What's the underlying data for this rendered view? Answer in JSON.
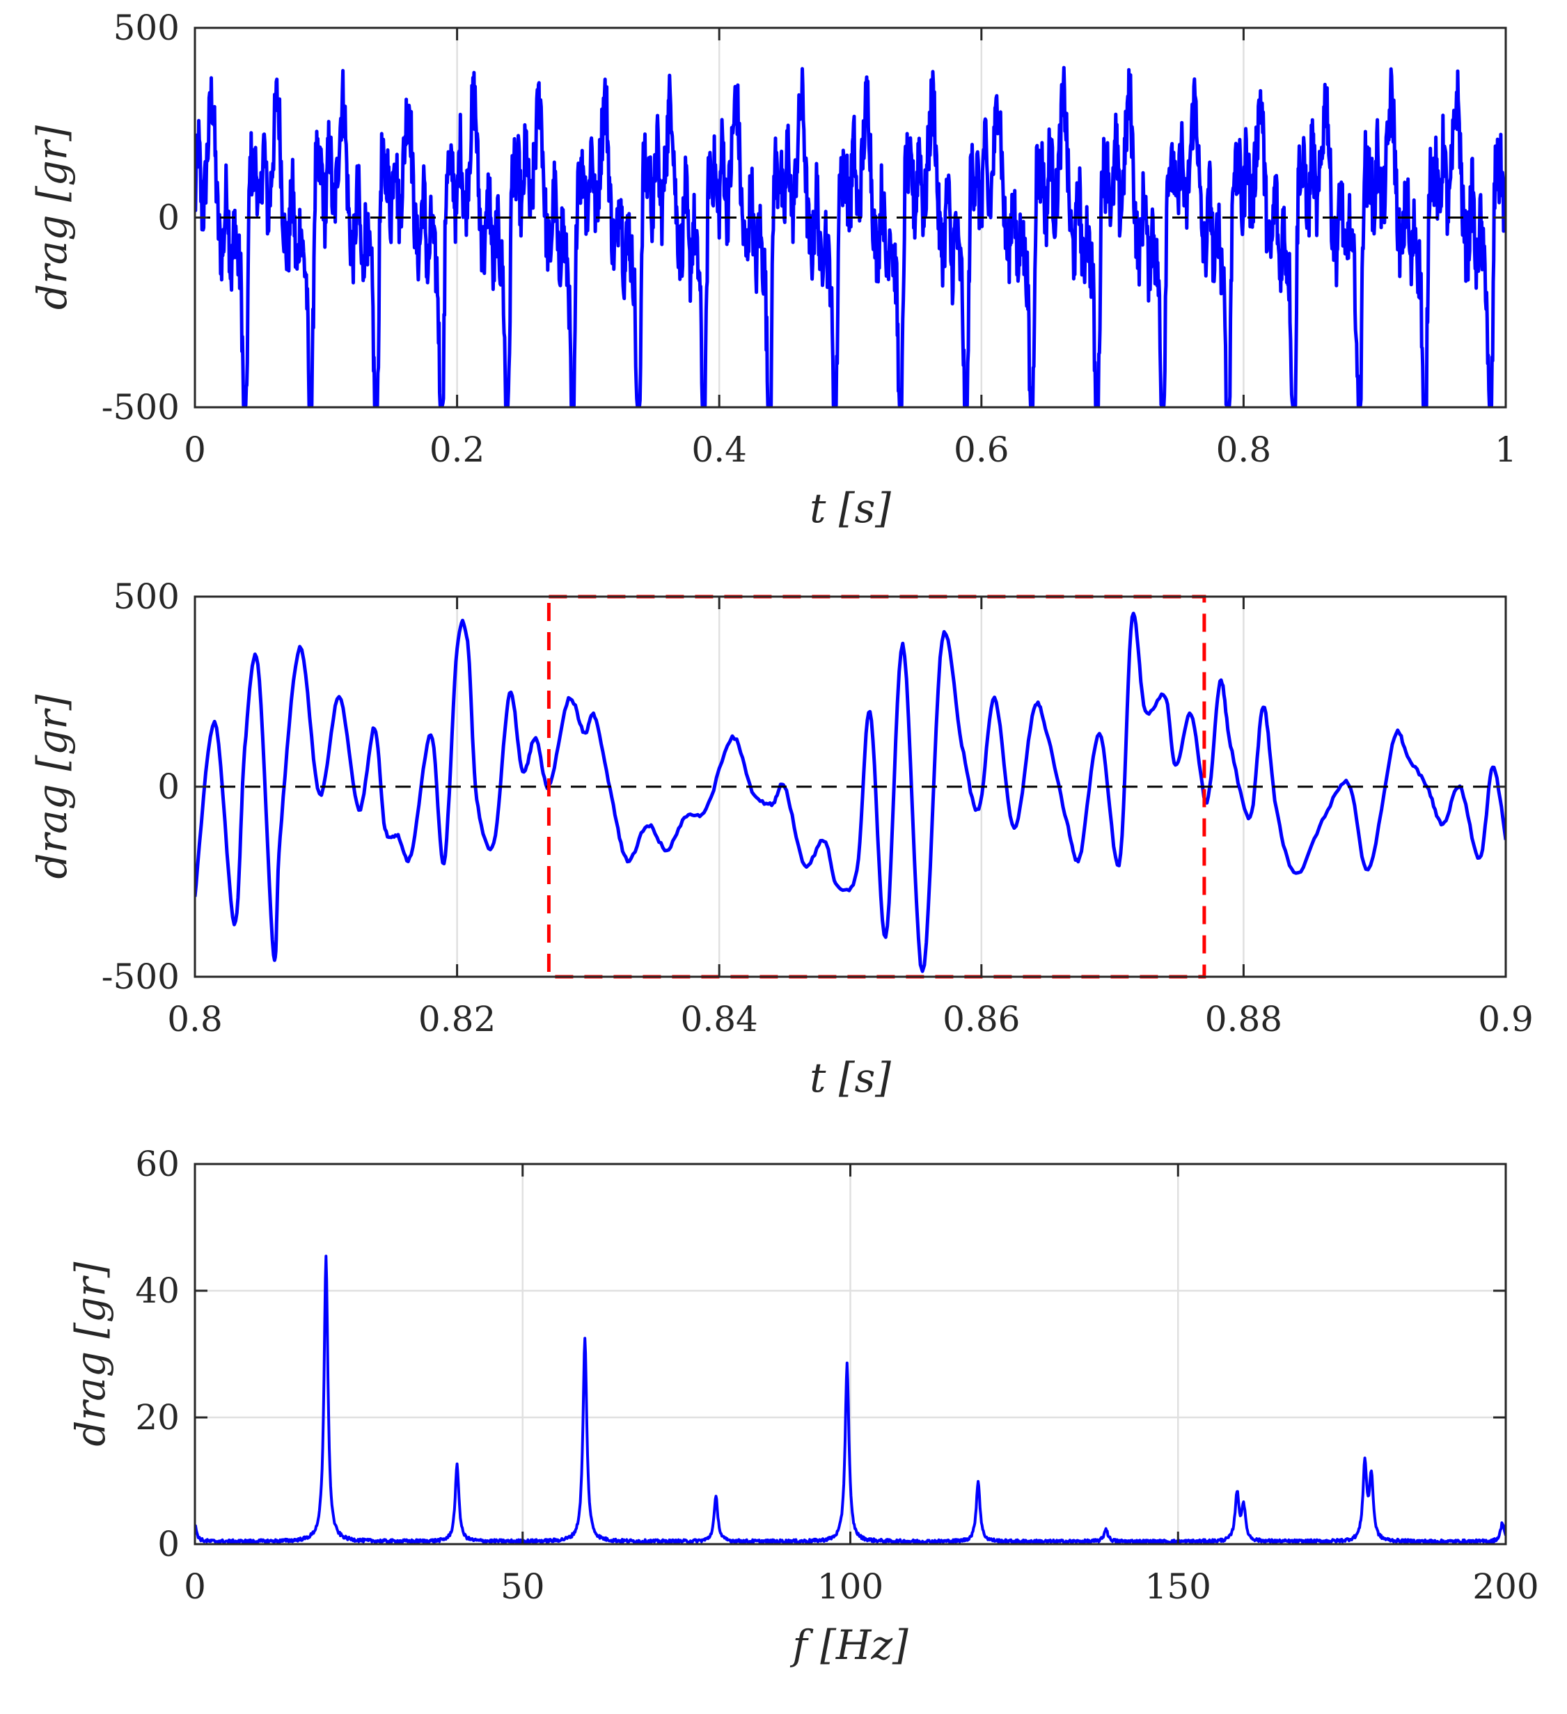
{
  "chart_data": [
    {
      "type": "line",
      "xlabel": "t [s]",
      "ylabel": "drag [gr]",
      "xlim": [
        0,
        1
      ],
      "ylim": [
        -500,
        500
      ],
      "xticks": [
        0,
        0.2,
        0.4,
        0.6,
        0.8,
        1
      ],
      "xtick_labels": [
        "0",
        "0.2",
        "0.4",
        "0.6",
        "0.8",
        "1"
      ],
      "yticks": [
        -500,
        0,
        500
      ],
      "ytick_labels": [
        "-500",
        "0",
        "500"
      ],
      "grid": "vertical",
      "reference_line": {
        "y": 0,
        "style": "dashed",
        "color": "#000000"
      },
      "series": [
        {
          "color": "#0000ff",
          "description_of_signal": "periodic oscillation with fundamental ~20 Hz and harmonics, amplitude up to about ±500",
          "harmonics_hz": [
            20,
            40,
            60,
            80,
            100,
            120,
            140,
            160,
            180,
            200
          ],
          "harmonic_amplitudes": [
            45,
            12,
            32,
            7,
            28,
            9.5,
            2,
            7.5,
            12,
            3
          ]
        }
      ]
    },
    {
      "type": "line",
      "xlabel": "t [s]",
      "ylabel": "drag [gr]",
      "xlim": [
        0.8,
        0.9
      ],
      "ylim": [
        -500,
        500
      ],
      "xticks": [
        0.8,
        0.82,
        0.84,
        0.86,
        0.88,
        0.9
      ],
      "xtick_labels": [
        "0.8",
        "0.82",
        "0.84",
        "0.86",
        "0.88",
        "0.9"
      ],
      "yticks": [
        -500,
        0,
        500
      ],
      "ytick_labels": [
        "-500",
        "0",
        "500"
      ],
      "grid": "vertical",
      "reference_line": {
        "y": 0,
        "style": "dashed",
        "color": "#000000"
      },
      "highlight_box": {
        "x": [
          0.827,
          0.877
        ],
        "y": [
          -500,
          500
        ],
        "color": "#ff0000",
        "style": "dashed"
      },
      "series": [
        {
          "color": "#0000ff",
          "x": [
            0.8,
            0.8015,
            0.803,
            0.8038,
            0.8048,
            0.806,
            0.8065,
            0.808,
            0.8095,
            0.811,
            0.8125,
            0.8137,
            0.8145,
            0.8155,
            0.8165,
            0.818,
            0.819,
            0.82,
            0.8208,
            0.8215,
            0.8228,
            0.824,
            0.825,
            0.826,
            0.827,
            0.8285,
            0.8297,
            0.8305,
            0.8318,
            0.833,
            0.8345,
            0.836,
            0.8375,
            0.839,
            0.841,
            0.8425,
            0.844,
            0.845,
            0.8465,
            0.848,
            0.849,
            0.8505,
            0.8515,
            0.8527,
            0.854,
            0.8555,
            0.857,
            0.8585,
            0.8598,
            0.861,
            0.8625,
            0.864,
            0.865,
            0.8665,
            0.8675,
            0.869,
            0.8705,
            0.8715,
            0.8725,
            0.874,
            0.8748,
            0.876,
            0.8772,
            0.8782,
            0.879,
            0.8805,
            0.8815,
            0.8825,
            0.884,
            0.886,
            0.888,
            0.8895,
            0.8915,
            0.8925,
            0.894,
            0.8952,
            0.8965,
            0.898,
            0.899,
            0.9
          ],
          "y": [
            -290,
            170,
            -360,
            100,
            325,
            -440,
            -130,
            365,
            -20,
            235,
            -60,
            155,
            -110,
            -130,
            -180,
            140,
            -200,
            365,
            380,
            -30,
            -150,
            245,
            40,
            130,
            0,
            230,
            140,
            185,
            -30,
            -195,
            -100,
            -165,
            -75,
            -60,
            130,
            -10,
            -45,
            0,
            -205,
            -140,
            -260,
            -220,
            200,
            -400,
            375,
            -490,
            385,
            110,
            -60,
            235,
            -110,
            205,
            140,
            -90,
            -185,
            140,
            -205,
            445,
            200,
            240,
            55,
            190,
            -40,
            275,
            110,
            -80,
            210,
            -60,
            -230,
            -90,
            10,
            -220,
            130,
            80,
            0,
            -100,
            0,
            -190,
            50,
            -140
          ]
        }
      ]
    },
    {
      "type": "line",
      "xlabel": "f [Hz]",
      "ylabel": "drag [gr]",
      "xlim": [
        0,
        200
      ],
      "ylim": [
        0,
        60
      ],
      "xticks": [
        0,
        50,
        100,
        150,
        200
      ],
      "xtick_labels": [
        "0",
        "50",
        "100",
        "150",
        "200"
      ],
      "yticks": [
        0,
        20,
        40,
        60
      ],
      "ytick_labels": [
        "0",
        "20",
        "40",
        "60"
      ],
      "grid": "both",
      "series": [
        {
          "color": "#0000ff",
          "peaks": [
            {
              "x": 0,
              "y": 2.5
            },
            {
              "x": 20,
              "y": 45
            },
            {
              "x": 40,
              "y": 12
            },
            {
              "x": 59.5,
              "y": 32
            },
            {
              "x": 79.5,
              "y": 7
            },
            {
              "x": 99.5,
              "y": 28
            },
            {
              "x": 119.5,
              "y": 9.5
            },
            {
              "x": 139,
              "y": 2
            },
            {
              "x": 159,
              "y": 7.5
            },
            {
              "x": 160,
              "y": 5.5
            },
            {
              "x": 178.5,
              "y": 12
            },
            {
              "x": 179.5,
              "y": 10
            },
            {
              "x": 199.5,
              "y": 3
            }
          ],
          "baseline": 0.4
        }
      ]
    }
  ]
}
